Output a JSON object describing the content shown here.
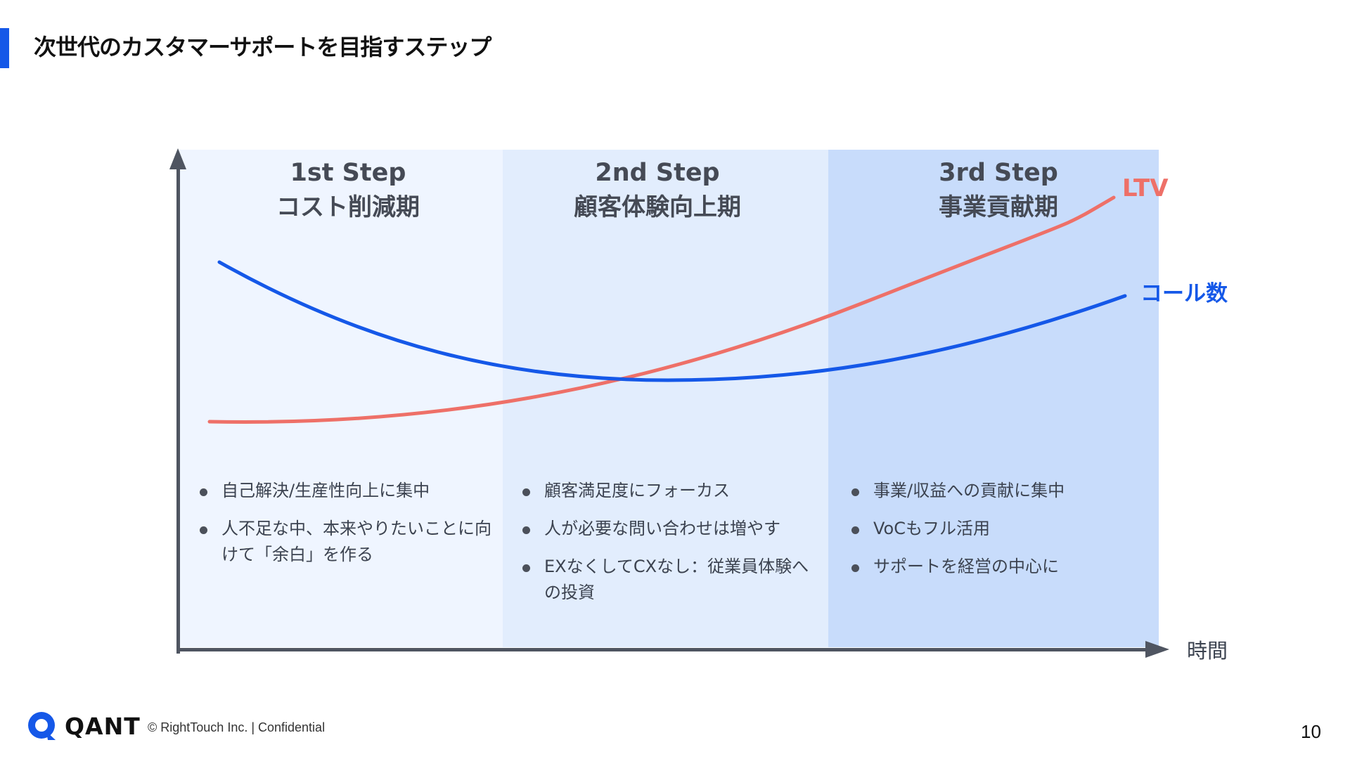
{
  "page": {
    "title": "次世代のカスタマーサポートを目指すステップ",
    "page_number": "10"
  },
  "chart": {
    "x_axis_label": "時間",
    "series": [
      {
        "name": "LTV",
        "color": "#ee7068"
      },
      {
        "name": "コール数",
        "color": "#1558e8"
      }
    ],
    "steps": [
      {
        "name": "1st Step",
        "subtitle": "コスト削減期",
        "bullets": [
          "自己解決/生産性向上に集中",
          "人不足な中、本来やりたいことに向けて「余白」を作る"
        ]
      },
      {
        "name": "2nd Step",
        "subtitle": "顧客体験向上期",
        "bullets": [
          "顧客満足度にフォーカス",
          "人が必要な問い合わせは増やす",
          "EXなくしてCXなし：従業員体験への投資"
        ]
      },
      {
        "name": "3rd Step",
        "subtitle": "事業貢献期",
        "bullets": [
          "事業/収益への貢献に集中",
          "VoCもフル活用",
          "サポートを経営の中心に"
        ]
      }
    ]
  },
  "footer": {
    "logo_text": "QANT",
    "copyright": "© RightTouch Inc.  |  Confidential"
  },
  "colors": {
    "accent": "#1558e8",
    "ltv": "#ee7068",
    "axis": "#4f5561",
    "band1": "#eff5ff",
    "band2": "#e2edfd",
    "band3": "#c8dcfb"
  },
  "icons": {
    "logo": "qant-logo-icon",
    "bullet": "bullet-dot-icon",
    "axis_arrow": "arrow-icon"
  }
}
